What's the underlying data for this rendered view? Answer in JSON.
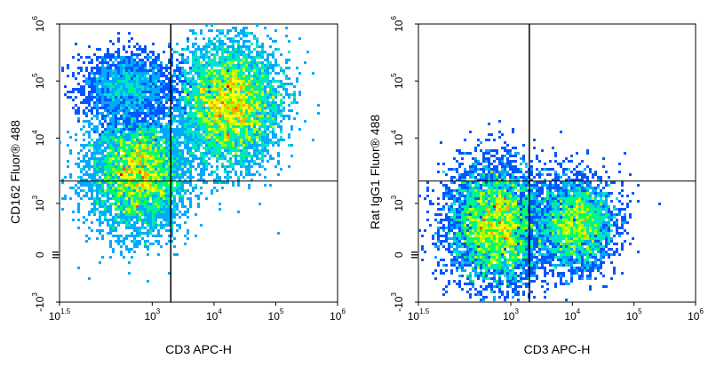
{
  "figure": {
    "panels": [
      {
        "id": "stained",
        "xlabel": "CD3 APC-H",
        "ylabel": "CD162 Fluor® 488"
      },
      {
        "id": "isotype",
        "xlabel": "CD3 APC-H",
        "ylabel": "Rat IgG1 Fluor® 488"
      }
    ]
  },
  "chart_data": [
    {
      "type": "scatter",
      "subtype": "flow-cytometry density plot",
      "title": "",
      "xlabel": "CD3 APC-H",
      "ylabel": "CD162 Fluor® 488",
      "x_scale": "log",
      "y_scale": "biexponential",
      "xlim": [
        31.6,
        1000000
      ],
      "x_ticks": [
        {
          "base": "10",
          "exp": "1.5",
          "value": 31.6
        },
        {
          "base": "10",
          "exp": "3",
          "value": 1000
        },
        {
          "base": "10",
          "exp": "4",
          "value": 10000
        },
        {
          "base": "10",
          "exp": "5",
          "value": 100000
        },
        {
          "base": "10",
          "exp": "6",
          "value": 1000000
        }
      ],
      "y_ticks": [
        {
          "base": "-10",
          "exp": "3",
          "value": -1000
        },
        {
          "base": "0",
          "exp": "",
          "value": 0
        },
        {
          "base": "10",
          "exp": "3",
          "value": 1000
        },
        {
          "base": "10",
          "exp": "4",
          "value": 10000
        },
        {
          "base": "10",
          "exp": "5",
          "value": 100000
        },
        {
          "base": "10",
          "exp": "6",
          "value": 1000000
        }
      ],
      "quadrant_gate": {
        "x": 2000,
        "y": 2200
      },
      "populations": [
        {
          "x_center": 600,
          "y_center": 3000,
          "intensity": "high"
        },
        {
          "x_center": 18000,
          "y_center": 40000,
          "intensity": "high"
        },
        {
          "x_center": 400,
          "y_center": 80000,
          "intensity": "low"
        }
      ],
      "color_scale": [
        "#0000ff",
        "#00aaff",
        "#00ff88",
        "#ffff00",
        "#ff8800",
        "#ff0000"
      ]
    },
    {
      "type": "scatter",
      "subtype": "flow-cytometry density plot",
      "title": "",
      "xlabel": "CD3 APC-H",
      "ylabel": "Rat IgG1 Fluor® 488",
      "x_scale": "log",
      "y_scale": "biexponential",
      "xlim": [
        31.6,
        1000000
      ],
      "x_ticks": [
        {
          "base": "10",
          "exp": "1.5",
          "value": 31.6
        },
        {
          "base": "10",
          "exp": "3",
          "value": 1000
        },
        {
          "base": "10",
          "exp": "4",
          "value": 10000
        },
        {
          "base": "10",
          "exp": "5",
          "value": 100000
        },
        {
          "base": "10",
          "exp": "6",
          "value": 1000000
        }
      ],
      "y_ticks": [
        {
          "base": "-10",
          "exp": "3",
          "value": -1000
        },
        {
          "base": "0",
          "exp": "",
          "value": 0
        },
        {
          "base": "10",
          "exp": "3",
          "value": 1000
        },
        {
          "base": "10",
          "exp": "4",
          "value": 10000
        },
        {
          "base": "10",
          "exp": "5",
          "value": 100000
        },
        {
          "base": "10",
          "exp": "6",
          "value": 1000000
        }
      ],
      "quadrant_gate": {
        "x": 2000,
        "y": 2200
      },
      "populations": [
        {
          "x_center": 600,
          "y_center": 600,
          "intensity": "high"
        },
        {
          "x_center": 11000,
          "y_center": 600,
          "intensity": "medium"
        }
      ],
      "color_scale": [
        "#0000ff",
        "#00aaff",
        "#00ff88",
        "#ffff00",
        "#ff8800",
        "#ff0000"
      ]
    }
  ]
}
